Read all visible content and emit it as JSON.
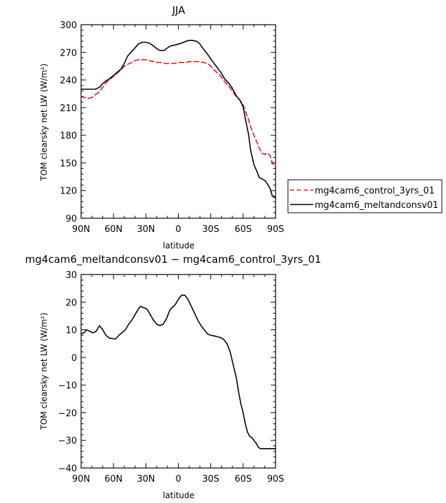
{
  "chart_data": [
    {
      "type": "line",
      "title": "JJA",
      "xlabel": "latitude",
      "ylabel": "TOM clearsky net LW (W/m²)",
      "xlim": [
        90,
        -90
      ],
      "ylim": [
        90,
        300
      ],
      "xticks": [
        90,
        60,
        30,
        0,
        -30,
        -60,
        -90
      ],
      "xtick_labels": [
        "90N",
        "60N",
        "30N",
        "0",
        "30S",
        "60S",
        "90S"
      ],
      "yticks": [
        90,
        120,
        150,
        180,
        210,
        240,
        270,
        300
      ],
      "ytick_labels": [
        "90",
        "120",
        "150",
        "180",
        "210",
        "240",
        "270",
        "300"
      ],
      "legend": [
        "mg4cam6_control_3yrs_01",
        "mg4cam6_meltandconsv01"
      ],
      "series": [
        {
          "name": "mg4cam6_control_3yrs_01",
          "color": "#e8141b",
          "dash": "dashed",
          "x": [
            90,
            87,
            83,
            80,
            77,
            73,
            70,
            67,
            63,
            60,
            57,
            53,
            50,
            47,
            43,
            40,
            37,
            33,
            30,
            27,
            23,
            20,
            17,
            13,
            10,
            7,
            3,
            0,
            -3,
            -7,
            -10,
            -13,
            -17,
            -20,
            -23,
            -27,
            -30,
            -33,
            -37,
            -40,
            -43,
            -47,
            -50,
            -53,
            -57,
            -60,
            -62,
            -65,
            -67,
            -70,
            -73,
            -75,
            -77,
            -80,
            -82,
            -85,
            -87,
            -90
          ],
          "y": [
            222,
            221,
            220,
            221,
            224,
            227,
            232,
            237,
            241,
            244,
            247,
            251,
            255,
            257,
            259,
            261,
            262,
            262,
            262,
            261,
            260,
            259,
            259,
            258,
            258,
            258,
            258,
            259,
            259,
            259,
            260,
            260,
            260,
            260,
            259,
            258,
            255,
            251,
            247,
            243,
            238,
            233,
            228,
            223,
            218,
            213,
            206,
            197,
            189,
            180,
            172,
            166,
            161,
            159,
            161,
            158,
            150,
            145
          ]
        },
        {
          "name": "mg4cam6_meltandconsv01",
          "color": "#000000",
          "dash": "solid",
          "x": [
            90,
            87,
            83,
            80,
            77,
            73,
            70,
            67,
            63,
            60,
            57,
            53,
            50,
            47,
            43,
            40,
            37,
            33,
            30,
            27,
            23,
            20,
            17,
            13,
            10,
            7,
            3,
            0,
            -3,
            -7,
            -10,
            -13,
            -17,
            -20,
            -23,
            -27,
            -30,
            -33,
            -37,
            -40,
            -43,
            -47,
            -50,
            -53,
            -57,
            -60,
            -62,
            -65,
            -67,
            -70,
            -73,
            -75,
            -77,
            -80,
            -82,
            -85,
            -87,
            -90
          ],
          "y": [
            230,
            230,
            230,
            230,
            230,
            232,
            236,
            239,
            242,
            245,
            248,
            252,
            258,
            266,
            271,
            275,
            279,
            281,
            281,
            280,
            277,
            274,
            272,
            272,
            275,
            277,
            278,
            279,
            280,
            282,
            283,
            283,
            282,
            279,
            274,
            268,
            263,
            258,
            252,
            247,
            241,
            236,
            231,
            224,
            218,
            211,
            198,
            181,
            163,
            148,
            140,
            134,
            133,
            131,
            128,
            122,
            114,
            112
          ]
        }
      ]
    },
    {
      "type": "line",
      "title": "mg4cam6_meltandconsv01 − mg4cam6_control_3yrs_01",
      "xlabel": "latitude",
      "ylabel": "TOM clearsky net LW (W/m²)",
      "xlim": [
        90,
        -90
      ],
      "ylim": [
        -40,
        30
      ],
      "xticks": [
        90,
        60,
        30,
        0,
        -30,
        -60,
        -90
      ],
      "xtick_labels": [
        "90N",
        "60N",
        "30N",
        "0",
        "30S",
        "60S",
        "90S"
      ],
      "yticks": [
        -40,
        -30,
        -20,
        -10,
        0,
        10,
        20,
        30
      ],
      "ytick_labels": [
        "−40",
        "−30",
        "−20",
        "−10",
        "0",
        "10",
        "20",
        "30"
      ],
      "series": [
        {
          "name": "difference",
          "color": "#000000",
          "dash": "solid",
          "x": [
            90,
            87,
            85,
            82,
            80,
            78,
            76,
            73,
            70,
            67,
            64,
            61,
            58,
            55,
            52,
            49,
            46,
            43,
            40,
            37,
            35,
            32,
            29,
            26,
            23,
            20,
            17,
            14,
            11,
            8,
            6,
            3,
            0,
            -3,
            -6,
            -9,
            -12,
            -15,
            -18,
            -21,
            -24,
            -27,
            -30,
            -33,
            -36,
            -39,
            -42,
            -45,
            -48,
            -51,
            -54,
            -56,
            -58,
            -60,
            -62,
            -64,
            -66,
            -68,
            -70,
            -72,
            -74,
            -76,
            -78,
            -80,
            -82,
            -84,
            -86,
            -88,
            -90
          ],
          "y": [
            8.5,
            9,
            10,
            9.5,
            9,
            9,
            9.5,
            11.5,
            10,
            8,
            7,
            6.8,
            6.7,
            8,
            9,
            10,
            12,
            13.5,
            15.5,
            17.5,
            18.5,
            18,
            17.5,
            15.5,
            13.5,
            12,
            11.5,
            12,
            14,
            17,
            18,
            19,
            21,
            22.5,
            22.5,
            21,
            18.5,
            16,
            13.5,
            11.5,
            10,
            8.5,
            8,
            7.8,
            7.5,
            7.2,
            6.5,
            5,
            2,
            -3,
            -8,
            -13,
            -17,
            -20,
            -24,
            -27,
            -28.5,
            -29,
            -30,
            -31,
            -32.5,
            -33,
            -33,
            -33,
            -33,
            -33,
            -33,
            -33,
            -33
          ]
        }
      ]
    }
  ]
}
